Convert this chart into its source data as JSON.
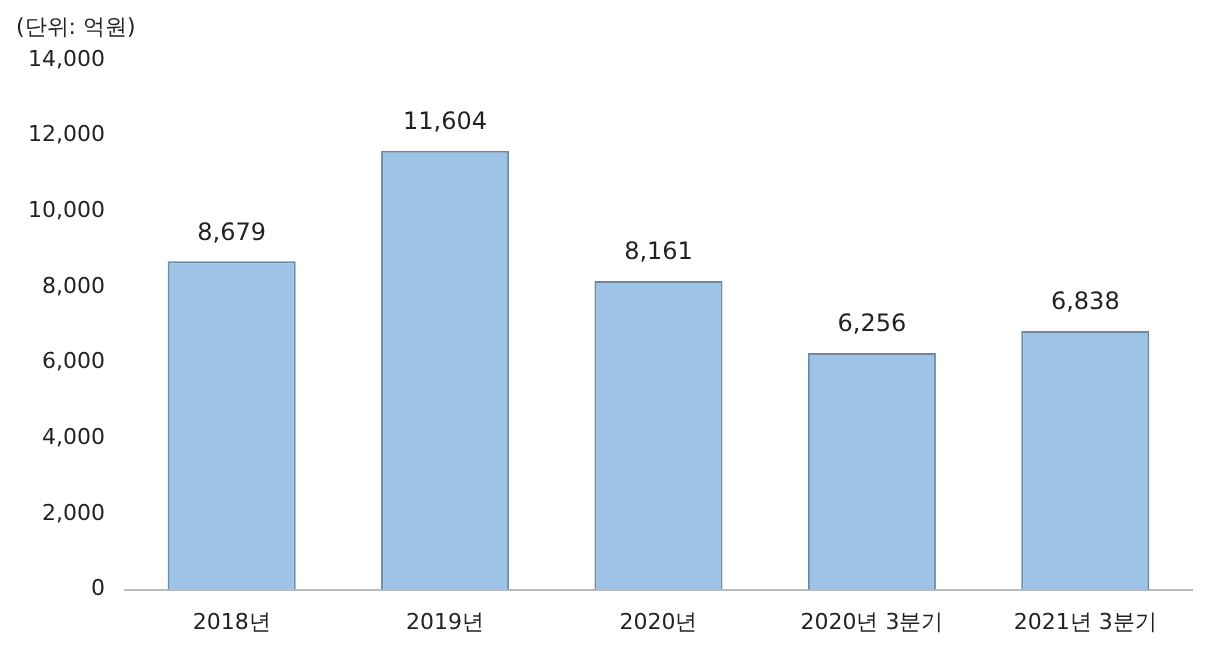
{
  "chart_data": {
    "type": "bar",
    "annotations": [
      "(단위: 억원)"
    ],
    "categories": [
      "2018년",
      "2019년",
      "2020년",
      "2020년 3분기",
      "2021년 3분기"
    ],
    "values": [
      8679,
      11604,
      8161,
      6256,
      6838
    ],
    "value_labels": [
      "8,679",
      "11,604",
      "8,161",
      "6,256",
      "6,838"
    ],
    "color": "#9dc3e6",
    "ylim": [
      0,
      14000
    ],
    "yticks": [
      {
        "value": 0,
        "label": "0"
      },
      {
        "value": 2000,
        "label": "2,000"
      },
      {
        "value": 4000,
        "label": "4,000"
      },
      {
        "value": 6000,
        "label": "6,000"
      },
      {
        "value": 8000,
        "label": "8,000"
      },
      {
        "value": 10000,
        "label": "10,000"
      },
      {
        "value": 12000,
        "label": "12,000"
      },
      {
        "value": 14000,
        "label": "14,000"
      }
    ],
    "grid": false,
    "legend": false
  }
}
